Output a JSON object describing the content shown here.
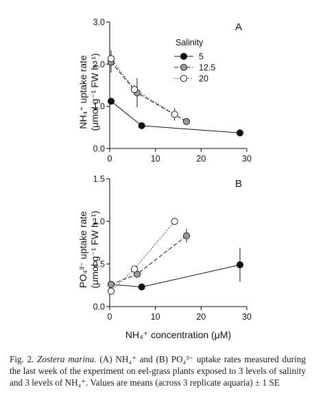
{
  "chart_data": [
    {
      "type": "scatter",
      "panel_label": "A",
      "xlabel": "",
      "ylabel_line1": "NH₄⁺ uptake rate",
      "ylabel_line2": "(μmol g⁻¹ FW h⁻¹)",
      "xlim": [
        0,
        30
      ],
      "ylim": [
        0,
        3
      ],
      "x_ticks": [
        0,
        10,
        20,
        30
      ],
      "y_ticks": [
        0.0,
        1.0,
        2.0,
        3.0
      ],
      "y_tick_labels": [
        "0.0",
        "1.0",
        "2.0",
        "3.0"
      ],
      "legend_title": "Salinity",
      "legend_position": "top-right",
      "series": [
        {
          "name": "5",
          "marker": "black",
          "line": "solid",
          "x": [
            0.3,
            7,
            28.5
          ],
          "y": [
            1.12,
            0.54,
            0.37
          ],
          "err": [
            0.0,
            0.0,
            0.08
          ]
        },
        {
          "name": "12.5",
          "marker": "gray",
          "line": "dashed",
          "x": [
            0.3,
            6,
            16.8
          ],
          "y": [
            2.05,
            1.32,
            0.64
          ],
          "err": [
            0.25,
            0.35,
            0.0
          ]
        },
        {
          "name": "20",
          "marker": "white",
          "line": "dotted",
          "x": [
            0.3,
            5.4,
            14.2
          ],
          "y": [
            2.13,
            1.4,
            0.81
          ],
          "err": [
            0.2,
            0.1,
            0.15
          ]
        }
      ]
    },
    {
      "type": "scatter",
      "panel_label": "B",
      "xlabel": "NH₄⁺ concentration (μM)",
      "ylabel_line1": "PO₄³⁻ uptake rate",
      "ylabel_line2": "(μmol g⁻¹ FW h⁻¹)",
      "xlim": [
        0,
        30
      ],
      "ylim": [
        0,
        1.5
      ],
      "x_ticks": [
        0,
        10,
        20,
        30
      ],
      "y_ticks": [
        0.0,
        0.5,
        1.0,
        1.5
      ],
      "y_tick_labels": [
        "0.0",
        "0.5",
        "1.0",
        "1.5"
      ],
      "series": [
        {
          "name": "5",
          "marker": "black",
          "line": "solid",
          "x": [
            0.3,
            7,
            28.5
          ],
          "y": [
            0.26,
            0.23,
            0.49
          ],
          "err": [
            0.03,
            0.0,
            0.2
          ]
        },
        {
          "name": "12.5",
          "marker": "gray",
          "line": "dashed",
          "x": [
            0.3,
            6,
            16.8
          ],
          "y": [
            0.26,
            0.38,
            0.83
          ],
          "err": [
            0.04,
            0.0,
            0.08
          ]
        },
        {
          "name": "20",
          "marker": "white",
          "line": "dotted",
          "x": [
            0.3,
            5.4,
            14.2
          ],
          "y": [
            0.18,
            0.44,
            1.0
          ],
          "err": [
            0.0,
            0.0,
            0.04
          ]
        }
      ]
    }
  ],
  "caption": {
    "label": "Fig. 2.",
    "species": "Zostera marina",
    "text": ". (A) NH₄⁺ and (B) PO₄³⁻ uptake rates measured during the last week of the experiment on eel-grass plants exposed to 3 levels of salinity and 3 levels of NH₄⁺. Values are means (across 3 replicate aquaria) ± 1 SE"
  },
  "colors": {
    "black": "#111111",
    "gray": "#9a9a9a",
    "white": "#ffffff",
    "axis": "#111111"
  }
}
